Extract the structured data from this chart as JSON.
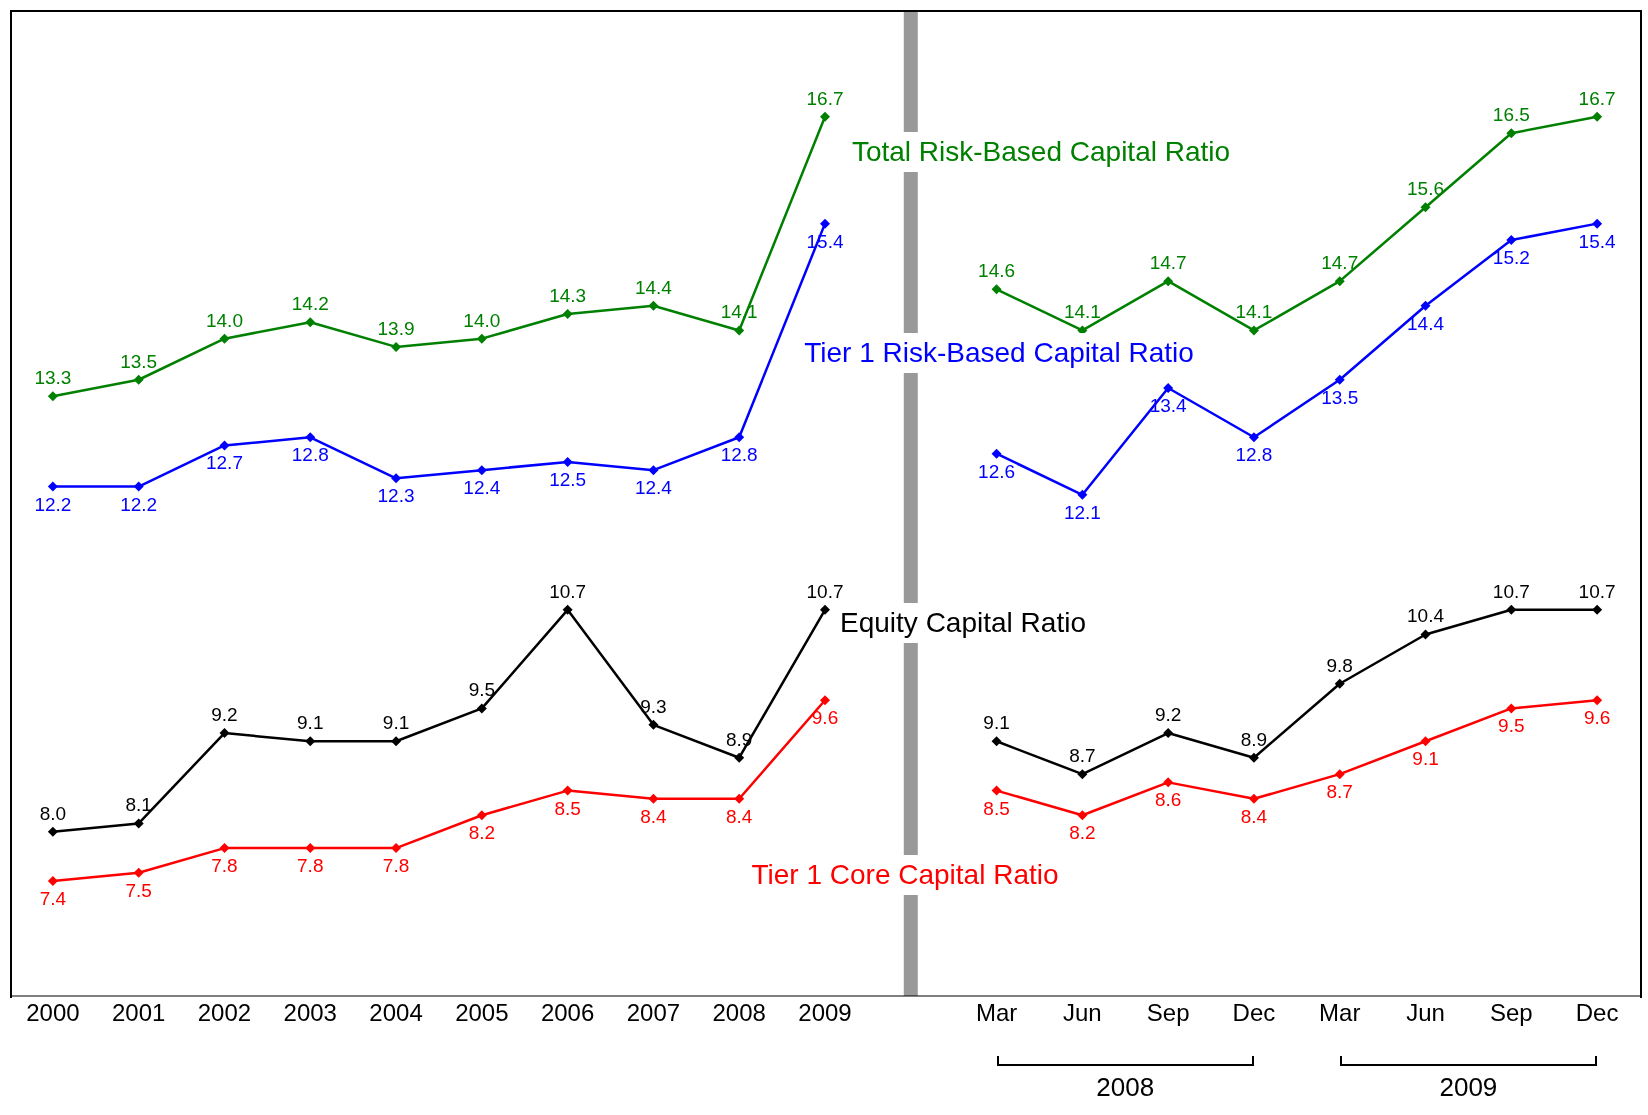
{
  "chart_data": {
    "type": "line",
    "categories": [
      "2000",
      "2001",
      "2002",
      "2003",
      "2004",
      "2005",
      "2006",
      "2007",
      "2008",
      "2009",
      null,
      "Mar",
      "Jun",
      "Sep",
      "Dec",
      "Mar",
      "Jun",
      "Sep",
      "Dec"
    ],
    "series": [
      {
        "name": "Total Risk-Based Capital Ratio",
        "color": "#008000",
        "values": [
          13.3,
          13.5,
          14.0,
          14.2,
          13.9,
          14.0,
          14.3,
          14.4,
          14.1,
          16.7,
          null,
          14.6,
          14.1,
          14.7,
          14.1,
          14.7,
          15.6,
          16.5,
          16.7
        ],
        "value_labels": [
          "13.3",
          "13.5",
          "14.0",
          "14.2",
          "13.9",
          "14.0",
          "14.3",
          "14.4",
          "14.1",
          "16.7",
          null,
          "14.6",
          "14.1",
          "14.7",
          "14.1",
          "14.7",
          "15.6",
          "16.5",
          "16.7"
        ]
      },
      {
        "name": "Tier 1 Risk-Based Capital Ratio",
        "color": "#0000ff",
        "values": [
          12.2,
          12.2,
          12.7,
          12.8,
          12.3,
          12.4,
          12.5,
          12.4,
          12.8,
          15.4,
          null,
          12.6,
          12.1,
          13.4,
          12.8,
          13.5,
          14.4,
          15.2,
          15.4
        ],
        "value_labels": [
          "12.2",
          "12.2",
          "12.7",
          "12.8",
          "12.3",
          "12.4",
          "12.5",
          "12.4",
          "12.8",
          "15.4",
          null,
          "12.6",
          "12.1",
          "13.4",
          "12.8",
          "13.5",
          "14.4",
          "15.2",
          "15.4"
        ]
      },
      {
        "name": "Equity Capital Ratio",
        "color": "#000000",
        "values": [
          8.0,
          8.1,
          9.2,
          9.1,
          9.1,
          9.5,
          10.7,
          9.3,
          8.9,
          10.7,
          null,
          9.1,
          8.7,
          9.2,
          8.9,
          9.8,
          10.4,
          10.7,
          10.7
        ],
        "value_labels": [
          "8.0",
          "8.1",
          "9.2",
          "9.1",
          "9.1",
          "9.5",
          "10.7",
          "9.3",
          "8.9",
          "10.7",
          null,
          "9.1",
          "8.7",
          "9.2",
          "8.9",
          "9.8",
          "10.4",
          "10.7",
          "10.7"
        ]
      },
      {
        "name": "Tier 1 Core Capital Ratio",
        "color": "#ff0000",
        "values": [
          7.4,
          7.5,
          7.8,
          7.8,
          7.8,
          8.2,
          8.5,
          8.4,
          8.4,
          9.6,
          null,
          8.5,
          8.2,
          8.6,
          8.4,
          8.7,
          9.1,
          9.5,
          9.6
        ],
        "value_labels": [
          "7.4",
          "7.5",
          "7.8",
          "7.8",
          "7.8",
          "8.2",
          "8.5",
          "8.4",
          "8.4",
          "9.6",
          null,
          "8.5",
          "8.2",
          "8.6",
          "8.4",
          "8.7",
          "9.1",
          "9.5",
          "9.6"
        ]
      }
    ],
    "ref_lines": [
      {
        "axis": "x",
        "value": null,
        "color": "#999999"
      }
    ],
    "ylim": [
      6,
      18
    ],
    "tick_labels": "x",
    "marker": "diamond",
    "legend": false,
    "annotations": [
      "2008",
      "2009"
    ]
  }
}
